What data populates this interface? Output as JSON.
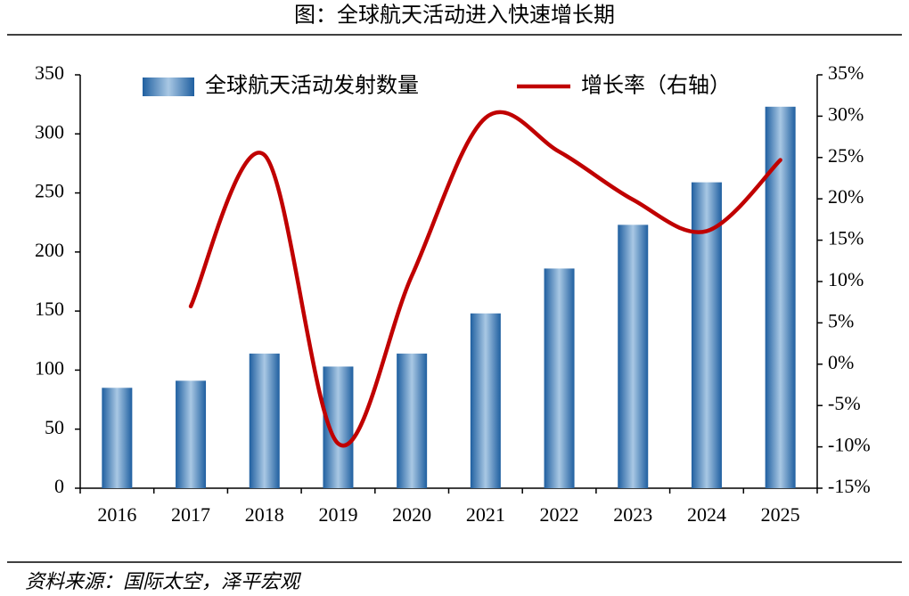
{
  "chart_data": {
    "type": "bar-line",
    "title": "图：全球航天活动进入快速增长期",
    "categories": [
      "2016",
      "2017",
      "2018",
      "2019",
      "2020",
      "2021",
      "2022",
      "2023",
      "2024",
      "2025"
    ],
    "series": [
      {
        "name": "全球航天活动发射数量",
        "type": "bar",
        "color": "#1f5fa0",
        "values": [
          85,
          91,
          114,
          103,
          114,
          148,
          186,
          223,
          259,
          323
        ]
      },
      {
        "name": "增长率（右轴）",
        "type": "line",
        "axis": "y2",
        "color": "#c00000",
        "values": [
          null,
          7,
          25.3,
          -9.6,
          10.7,
          29.8,
          25.7,
          19.9,
          16.1,
          24.7
        ]
      }
    ],
    "ylim": [
      0,
      350
    ],
    "yticks": [
      0,
      50,
      100,
      150,
      200,
      250,
      300,
      350
    ],
    "y2lim": [
      -15,
      35
    ],
    "y2ticks": [
      {
        "value": -15,
        "label": "-15%"
      },
      {
        "value": -10,
        "label": "-10%"
      },
      {
        "value": -5,
        "label": "-5%"
      },
      {
        "value": 0,
        "label": "0%"
      },
      {
        "value": 5,
        "label": "5%"
      },
      {
        "value": 10,
        "label": "10%"
      },
      {
        "value": 15,
        "label": "15%"
      },
      {
        "value": 20,
        "label": "20%"
      },
      {
        "value": 25,
        "label": "25%"
      },
      {
        "value": 30,
        "label": "30%"
      },
      {
        "value": 35,
        "label": "35%"
      }
    ],
    "source": "资料来源：国际太空，泽平宏观"
  }
}
